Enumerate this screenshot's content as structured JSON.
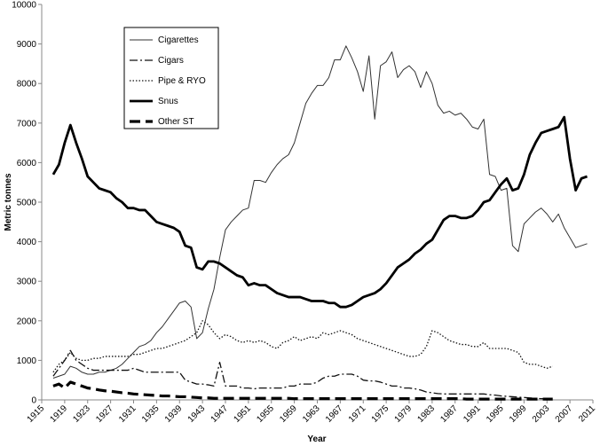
{
  "chart_data": {
    "type": "line",
    "x_label": "Year",
    "y_label": "Metric tonnes",
    "x": [
      1917,
      1918,
      1919,
      1920,
      1921,
      1922,
      1923,
      1924,
      1925,
      1926,
      1927,
      1928,
      1929,
      1930,
      1931,
      1932,
      1933,
      1934,
      1935,
      1936,
      1937,
      1938,
      1939,
      1940,
      1941,
      1942,
      1943,
      1944,
      1945,
      1946,
      1947,
      1948,
      1949,
      1950,
      1951,
      1952,
      1953,
      1954,
      1955,
      1956,
      1957,
      1958,
      1959,
      1960,
      1961,
      1962,
      1963,
      1964,
      1965,
      1966,
      1967,
      1968,
      1969,
      1970,
      1971,
      1972,
      1973,
      1974,
      1975,
      1976,
      1977,
      1978,
      1979,
      1980,
      1981,
      1982,
      1983,
      1984,
      1985,
      1986,
      1987,
      1988,
      1989,
      1990,
      1991,
      1992,
      1993,
      1994,
      1995,
      1996,
      1997,
      1998,
      1999,
      2000,
      2001,
      2002,
      2003,
      2004,
      2005,
      2006,
      2007,
      2008,
      2009,
      2010
    ],
    "series": [
      {
        "name": "Cigarettes",
        "color": "#333333",
        "line_width": 1,
        "line_style": "solid",
        "values": [
          550,
          600,
          650,
          850,
          800,
          700,
          650,
          650,
          700,
          700,
          750,
          800,
          900,
          1050,
          1200,
          1350,
          1400,
          1500,
          1700,
          1850,
          2050,
          2250,
          2450,
          2500,
          2350,
          1550,
          1700,
          2300,
          2800,
          3600,
          4300,
          4500,
          4650,
          4800,
          4850,
          5550,
          5550,
          5500,
          5750,
          5950,
          6100,
          6200,
          6500,
          7000,
          7500,
          7750,
          7950,
          7950,
          8150,
          8600,
          8600,
          8950,
          8650,
          8300,
          7800,
          8700,
          7100,
          8450,
          8550,
          8800,
          8150,
          8350,
          8450,
          8300,
          7900,
          8300,
          8000,
          7450,
          7250,
          7300,
          7200,
          7250,
          7100,
          6900,
          6850,
          7100,
          5700,
          5650,
          5300,
          5350,
          3900,
          3750,
          4450,
          4600,
          4750,
          4850,
          4700,
          4500,
          4700,
          4350,
          4100,
          3850,
          3900,
          3950
        ]
      },
      {
        "name": "Cigars",
        "color": "#111111",
        "line_width": 1.3,
        "line_style": "dashdot",
        "values": [
          600,
          800,
          1000,
          1250,
          1000,
          900,
          800,
          750,
          750,
          750,
          750,
          750,
          750,
          750,
          800,
          750,
          700,
          700,
          700,
          700,
          700,
          700,
          700,
          500,
          450,
          400,
          400,
          380,
          350,
          950,
          350,
          350,
          350,
          300,
          300,
          280,
          300,
          300,
          300,
          300,
          300,
          350,
          350,
          400,
          400,
          400,
          450,
          550,
          600,
          600,
          650,
          650,
          650,
          600,
          500,
          480,
          480,
          450,
          400,
          350,
          350,
          300,
          300,
          280,
          250,
          200,
          180,
          160,
          150,
          150,
          150,
          150,
          150,
          150,
          150,
          150,
          130,
          120,
          100,
          90,
          80,
          70,
          60,
          50,
          40,
          30,
          30,
          20,
          null,
          null,
          null,
          null,
          null,
          null
        ]
      },
      {
        "name": "Pipe & RYO",
        "color": "#111111",
        "line_width": 1.3,
        "line_style": "dotted",
        "values": [
          700,
          900,
          1000,
          1200,
          1050,
          1000,
          1000,
          1050,
          1050,
          1100,
          1100,
          1100,
          1100,
          1100,
          1150,
          1150,
          1200,
          1250,
          1300,
          1300,
          1350,
          1400,
          1450,
          1500,
          1600,
          1700,
          2000,
          1900,
          1700,
          1550,
          1650,
          1600,
          1500,
          1450,
          1500,
          1450,
          1500,
          1450,
          1350,
          1300,
          1450,
          1500,
          1600,
          1500,
          1550,
          1600,
          1550,
          1700,
          1650,
          1700,
          1750,
          1700,
          1650,
          1550,
          1500,
          1450,
          1400,
          1350,
          1300,
          1250,
          1200,
          1150,
          1100,
          1100,
          1150,
          1350,
          1750,
          1700,
          1600,
          1500,
          1450,
          1400,
          1400,
          1350,
          1350,
          1450,
          1300,
          1300,
          1300,
          1300,
          1250,
          1200,
          950,
          900,
          900,
          850,
          800,
          850,
          null,
          null,
          null,
          null,
          null,
          null
        ]
      },
      {
        "name": "Snus",
        "color": "#000000",
        "line_width": 2.8,
        "line_style": "solid",
        "values": [
          5700,
          5950,
          6500,
          6950,
          6500,
          6100,
          5650,
          5500,
          5350,
          5300,
          5250,
          5100,
          5000,
          4850,
          4850,
          4800,
          4800,
          4650,
          4500,
          4450,
          4400,
          4350,
          4250,
          3900,
          3850,
          3350,
          3300,
          3500,
          3500,
          3450,
          3350,
          3250,
          3150,
          3100,
          2900,
          2950,
          2900,
          2900,
          2800,
          2700,
          2650,
          2600,
          2600,
          2600,
          2550,
          2500,
          2500,
          2500,
          2450,
          2450,
          2350,
          2350,
          2400,
          2500,
          2600,
          2650,
          2700,
          2800,
          2950,
          3150,
          3350,
          3450,
          3550,
          3700,
          3800,
          3950,
          4050,
          4300,
          4550,
          4650,
          4650,
          4600,
          4600,
          4650,
          4800,
          5000,
          5050,
          5250,
          5450,
          5600,
          5300,
          5350,
          5700,
          6200,
          6500,
          6750,
          6800,
          6850,
          6900,
          7150,
          6100,
          5300,
          5600,
          5650
        ]
      },
      {
        "name": "Other ST",
        "color": "#000000",
        "line_width": 3.2,
        "line_style": "dashed",
        "values": [
          350,
          400,
          300,
          450,
          400,
          350,
          300,
          280,
          250,
          230,
          220,
          200,
          180,
          170,
          150,
          140,
          130,
          120,
          110,
          100,
          100,
          90,
          80,
          80,
          70,
          60,
          50,
          50,
          40,
          40,
          40,
          40,
          40,
          40,
          40,
          40,
          40,
          40,
          40,
          40,
          40,
          40,
          30,
          30,
          30,
          30,
          30,
          30,
          30,
          30,
          30,
          30,
          30,
          30,
          30,
          30,
          30,
          30,
          30,
          30,
          30,
          30,
          30,
          30,
          30,
          30,
          30,
          30,
          30,
          30,
          30,
          30,
          20,
          20,
          20,
          20,
          20,
          20,
          20,
          20,
          20,
          20,
          20,
          20,
          20,
          20,
          20,
          20,
          null,
          null,
          null,
          null,
          null,
          null
        ]
      }
    ],
    "xlim": [
      1915,
      2011
    ],
    "xticks": [
      1915,
      1919,
      1923,
      1927,
      1931,
      1935,
      1939,
      1943,
      1947,
      1951,
      1955,
      1959,
      1963,
      1967,
      1971,
      1975,
      1979,
      1983,
      1987,
      1991,
      1995,
      1999,
      2003,
      2007,
      2011
    ],
    "ylim": [
      0,
      10000
    ],
    "yticks": [
      0,
      1000,
      2000,
      3000,
      4000,
      5000,
      6000,
      7000,
      8000,
      9000,
      10000
    ],
    "grid": false,
    "legend": "upper left"
  }
}
